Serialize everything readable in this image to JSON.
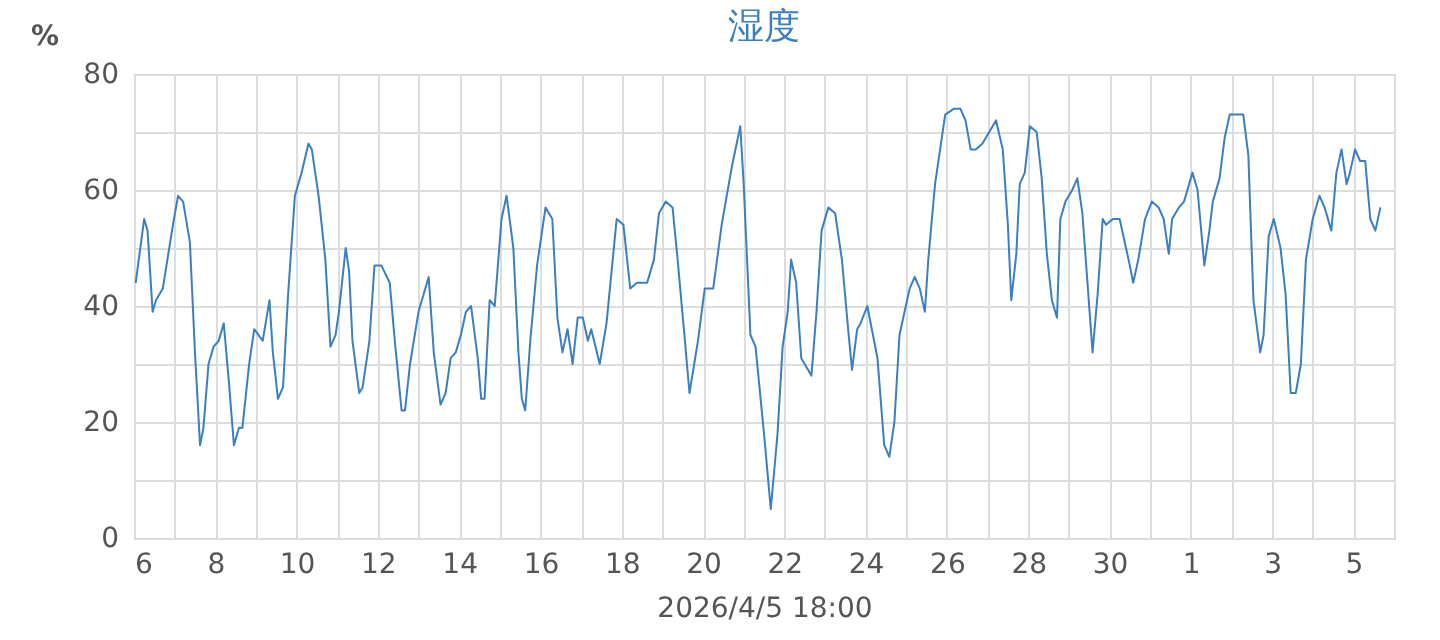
{
  "chart_data": {
    "type": "line",
    "title": "湿度",
    "xlabel": "2026/4/5 18:00",
    "ylabel": "%",
    "xlim": [
      "2026-03-06",
      "2026-04-06"
    ],
    "xticks": [
      {
        "value": "2026-03-06",
        "label": "6"
      },
      {
        "value": "2026-03-07",
        "label": null
      },
      {
        "value": "2026-03-08",
        "label": "8"
      },
      {
        "value": "2026-03-09",
        "label": null
      },
      {
        "value": "2026-03-10",
        "label": "10"
      },
      {
        "value": "2026-03-11",
        "label": null
      },
      {
        "value": "2026-03-12",
        "label": "12"
      },
      {
        "value": "2026-03-13",
        "label": null
      },
      {
        "value": "2026-03-14",
        "label": "14"
      },
      {
        "value": "2026-03-15",
        "label": null
      },
      {
        "value": "2026-03-16",
        "label": "16"
      },
      {
        "value": "2026-03-17",
        "label": null
      },
      {
        "value": "2026-03-18",
        "label": "18"
      },
      {
        "value": "2026-03-19",
        "label": null
      },
      {
        "value": "2026-03-20",
        "label": "20"
      },
      {
        "value": "2026-03-21",
        "label": null
      },
      {
        "value": "2026-03-22",
        "label": "22"
      },
      {
        "value": "2026-03-23",
        "label": null
      },
      {
        "value": "2026-03-24",
        "label": "24"
      },
      {
        "value": "2026-03-25",
        "label": null
      },
      {
        "value": "2026-03-26",
        "label": "26"
      },
      {
        "value": "2026-03-27",
        "label": null
      },
      {
        "value": "2026-03-28",
        "label": "28"
      },
      {
        "value": "2026-03-29",
        "label": null
      },
      {
        "value": "2026-03-30",
        "label": "30"
      },
      {
        "value": "2026-03-31",
        "label": null
      },
      {
        "value": "2026-04-01",
        "label": "1"
      },
      {
        "value": "2026-04-02",
        "label": null
      },
      {
        "value": "2026-04-03",
        "label": "3"
      },
      {
        "value": "2026-04-04",
        "label": null
      },
      {
        "value": "2026-04-05",
        "label": "5"
      },
      {
        "value": "2026-04-06",
        "label": null
      }
    ],
    "ylim": [
      0,
      80
    ],
    "yticks": [
      0,
      {
        "value": 10,
        "label": null
      },
      20,
      {
        "value": 30,
        "label": null
      },
      40,
      {
        "value": 50,
        "label": null
      },
      60,
      {
        "value": 70,
        "label": null
      },
      80
    ],
    "grid": true,
    "marker": "none",
    "x": [
      "2026-03-06T01:00",
      "2026-03-06T06:00",
      "2026-03-06T08:00",
      "2026-03-06T11:00",
      "2026-03-06T13:00",
      "2026-03-06T17:00",
      "2026-03-06T23:00",
      "2026-03-07T02:00",
      "2026-03-07T05:00",
      "2026-03-07T09:00",
      "2026-03-07T12:00",
      "2026-03-07T15:00",
      "2026-03-07T17:00",
      "2026-03-07T20:00",
      "2026-03-07T23:00",
      "2026-03-08T02:00",
      "2026-03-08T05:00",
      "2026-03-08T08:00",
      "2026-03-08T11:00",
      "2026-03-08T14:00",
      "2026-03-08T16:00",
      "2026-03-08T20:00",
      "2026-03-08T23:00",
      "2026-03-09T04:00",
      "2026-03-09T08:00",
      "2026-03-09T10:00",
      "2026-03-09T13:00",
      "2026-03-09T16:00",
      "2026-03-09T19:00",
      "2026-03-09T23:00",
      "2026-03-10T03:00",
      "2026-03-10T07:00",
      "2026-03-10T09:00",
      "2026-03-10T13:00",
      "2026-03-10T17:00",
      "2026-03-10T20:00",
      "2026-03-10T23:00",
      "2026-03-11T01:00",
      "2026-03-11T05:00",
      "2026-03-11T07:00",
      "2026-03-11T09:00",
      "2026-03-11T13:00",
      "2026-03-11T15:00",
      "2026-03-11T19:00",
      "2026-03-11T22:00",
      "2026-03-12T02:00",
      "2026-03-12T07:00",
      "2026-03-12T10:00",
      "2026-03-12T14:00",
      "2026-03-12T16:00",
      "2026-03-12T19:00",
      "2026-03-13T00:00",
      "2026-03-13T06:00",
      "2026-03-13T09:00",
      "2026-03-13T13:00",
      "2026-03-13T16:00",
      "2026-03-13T19:00",
      "2026-03-13T22:00",
      "2026-03-14T01:00",
      "2026-03-14T04:00",
      "2026-03-14T07:00",
      "2026-03-14T11:00",
      "2026-03-14T13:00",
      "2026-03-14T15:00",
      "2026-03-14T18:00",
      "2026-03-14T21:00",
      "2026-03-15T01:00",
      "2026-03-15T04:00",
      "2026-03-15T08:00",
      "2026-03-15T11:00",
      "2026-03-15T13:00",
      "2026-03-15T15:00",
      "2026-03-15T18:00",
      "2026-03-15T22:00",
      "2026-03-16T03:00",
      "2026-03-16T07:00",
      "2026-03-16T10:00",
      "2026-03-16T13:00",
      "2026-03-16T16:00",
      "2026-03-16T19:00",
      "2026-03-16T22:00",
      "2026-03-17T01:00",
      "2026-03-17T04:00",
      "2026-03-17T06:00",
      "2026-03-17T11:00",
      "2026-03-17T15:00",
      "2026-03-17T21:00",
      "2026-03-18T01:00",
      "2026-03-18T05:00",
      "2026-03-18T09:00",
      "2026-03-18T15:00",
      "2026-03-18T19:00",
      "2026-03-18T22:00",
      "2026-03-19T02:00",
      "2026-03-19T06:00",
      "2026-03-19T09:00",
      "2026-03-19T13:00",
      "2026-03-19T16:00",
      "2026-03-19T21:00",
      "2026-03-20T01:00",
      "2026-03-20T06:00",
      "2026-03-20T11:00",
      "2026-03-20T17:00",
      "2026-03-20T22:00",
      "2026-03-21T00:00",
      "2026-03-21T04:00",
      "2026-03-21T07:00",
      "2026-03-21T12:00",
      "2026-03-21T16:00",
      "2026-03-21T20:00",
      "2026-03-21T23:00",
      "2026-03-22T02:00",
      "2026-03-22T04:00",
      "2026-03-22T07:00",
      "2026-03-22T10:00",
      "2026-03-22T16:00",
      "2026-03-22T19:00",
      "2026-03-22T22:00",
      "2026-03-23T02:00",
      "2026-03-23T06:00",
      "2026-03-23T10:00",
      "2026-03-23T14:00",
      "2026-03-23T16:00",
      "2026-03-23T19:00",
      "2026-03-23T21:00",
      "2026-03-24T01:00",
      "2026-03-24T05:00",
      "2026-03-24T07:00",
      "2026-03-24T11:00",
      "2026-03-24T14:00",
      "2026-03-24T17:00",
      "2026-03-24T20:00",
      "2026-03-24T23:00",
      "2026-03-25T02:00",
      "2026-03-25T05:00",
      "2026-03-25T08:00",
      "2026-03-25T11:00",
      "2026-03-25T13:00",
      "2026-03-25T17:00",
      "2026-03-25T22:00",
      "2026-03-25T23:00",
      "2026-03-26T04:00",
      "2026-03-26T08:00",
      "2026-03-26T11:00",
      "2026-03-26T14:00",
      "2026-03-26T17:00",
      "2026-03-26T21:00",
      "2026-03-27T01:00",
      "2026-03-27T05:00",
      "2026-03-27T09:00",
      "2026-03-27T12:00",
      "2026-03-27T14:00",
      "2026-03-27T17:00",
      "2026-03-27T19:00",
      "2026-03-27T22:00",
      "2026-03-28T01:00",
      "2026-03-28T05:00",
      "2026-03-28T08:00",
      "2026-03-28T11:00",
      "2026-03-28T14:00",
      "2026-03-28T17:00",
      "2026-03-28T19:00",
      "2026-03-28T22:00",
      "2026-03-29T02:00",
      "2026-03-29T05:00",
      "2026-03-29T08:00",
      "2026-03-29T11:00",
      "2026-03-29T14:00",
      "2026-03-29T17:00",
      "2026-03-29T20:00",
      "2026-03-29T22:00",
      "2026-03-30T02:00",
      "2026-03-30T06:00",
      "2026-03-30T09:00",
      "2026-03-30T12:00",
      "2026-03-30T14:00",
      "2026-03-30T17:00",
      "2026-03-30T21:00",
      "2026-03-31T01:00",
      "2026-03-31T05:00",
      "2026-03-31T08:00",
      "2026-03-31T11:00",
      "2026-03-31T13:00",
      "2026-03-31T17:00",
      "2026-03-31T20:00",
      "2026-03-31T23:00",
      "2026-04-01T01:00",
      "2026-04-01T04:00",
      "2026-04-01T08:00",
      "2026-04-01T11:00",
      "2026-04-01T13:00",
      "2026-04-01T17:00",
      "2026-04-01T20:00",
      "2026-04-01T23:00",
      "2026-04-02T04:00",
      "2026-04-02T07:00",
      "2026-04-02T10:00",
      "2026-04-02T13:00",
      "2026-04-02T17:00",
      "2026-04-02T19:00",
      "2026-04-02T22:00",
      "2026-04-03T01:00",
      "2026-04-03T05:00",
      "2026-04-03T08:00",
      "2026-04-03T11:00",
      "2026-04-03T14:00",
      "2026-04-03T17:00",
      "2026-04-03T20:00",
      "2026-04-04T00:00",
      "2026-04-04T04:00",
      "2026-04-04T07:00",
      "2026-04-04T11:00",
      "2026-04-04T14:00",
      "2026-04-04T17:00",
      "2026-04-04T20:00",
      "2026-04-04T22:00",
      "2026-04-05T01:00",
      "2026-04-05T04:00",
      "2026-04-05T07:00",
      "2026-04-05T10:00",
      "2026-04-05T13:00",
      "2026-04-05T16:00"
    ],
    "series": [
      {
        "color": "#3a7fc1",
        "values": [
          44,
          55,
          53,
          39,
          41,
          43,
          54,
          59,
          58,
          51,
          32,
          16,
          19,
          30,
          33,
          34,
          37,
          27,
          16,
          19,
          19,
          30,
          36,
          34,
          41,
          32,
          24,
          26,
          42,
          59,
          63,
          68,
          67,
          59,
          48,
          33,
          35,
          39,
          50,
          46,
          34,
          25,
          26,
          34,
          47,
          47,
          44,
          34,
          22,
          22,
          30,
          39,
          45,
          32,
          23,
          25,
          31,
          32,
          35,
          39,
          40,
          31,
          24,
          24,
          41,
          40,
          55,
          59,
          50,
          32,
          24,
          22,
          34,
          47,
          57,
          55,
          38,
          32,
          36,
          30,
          38,
          38,
          34,
          36,
          30,
          37,
          55,
          54,
          43,
          44,
          44,
          48,
          56,
          58,
          57,
          48,
          35,
          25,
          34,
          43,
          43,
          54,
          64,
          71,
          61,
          35,
          33,
          18,
          5,
          18,
          33,
          39,
          48,
          44,
          31,
          28,
          39,
          53,
          57,
          56,
          48,
          35,
          29,
          36,
          37,
          40,
          34,
          31,
          16,
          14,
          20,
          35,
          39,
          43,
          45,
          43,
          39,
          48,
          61,
          71,
          73,
          74,
          74,
          72,
          67,
          67,
          68,
          70,
          72,
          67,
          54,
          41,
          49,
          61,
          63,
          71,
          70,
          62,
          49,
          41,
          38,
          55,
          58,
          60,
          62,
          56,
          44,
          32,
          42,
          55,
          54,
          55,
          55,
          51,
          47,
          44,
          48,
          55,
          58,
          57,
          55,
          49,
          55,
          57,
          58,
          61,
          63,
          60,
          47,
          53,
          58,
          62,
          69,
          73,
          73,
          73,
          66,
          41,
          32,
          35,
          52,
          55,
          50,
          42,
          25,
          25,
          30,
          48,
          55,
          59,
          57,
          53,
          63,
          67,
          61,
          63,
          67,
          65,
          65,
          55,
          53,
          57
        ]
      }
    ]
  }
}
